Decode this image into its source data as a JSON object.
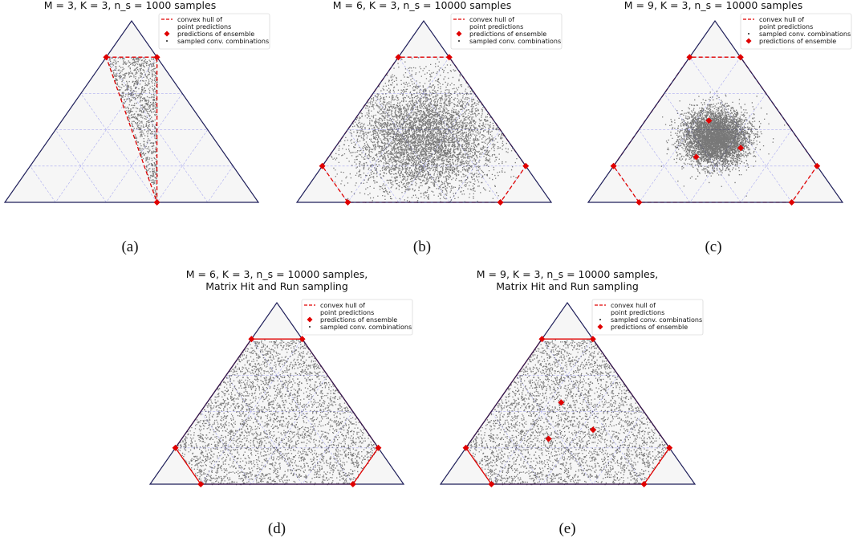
{
  "colors": {
    "triangle_edge": "#1f1f5a",
    "triangle_fill": "#f6f6f6",
    "grid": "#9999ee",
    "hull": "#e00000",
    "points": "#111111"
  },
  "chart_data": [
    {
      "type": "scatter",
      "caption": "(a)",
      "title_lines": [
        "M = 3, K = 3, n_s = 1000 samples"
      ],
      "hull_style": "dashed",
      "cloud": "uniform",
      "sample_count": 1000,
      "legend_order": [
        "hull",
        "ensemble",
        "samples"
      ],
      "legend_labels": {
        "hull": [
          "convex hull of",
          " point predictions"
        ],
        "ensemble": [
          "predictions of ensemble"
        ],
        "samples": [
          "sampled conv. combinations"
        ]
      },
      "ensemble_predictions": [
        [
          0.2,
          0.0,
          0.8
        ],
        [
          0.0,
          0.2,
          0.8
        ],
        [
          0.4,
          0.6,
          0.0
        ]
      ],
      "hull_vertices": [
        [
          0.2,
          0.0,
          0.8
        ],
        [
          0.0,
          0.2,
          0.8
        ],
        [
          0.4,
          0.6,
          0.0
        ]
      ]
    },
    {
      "type": "scatter",
      "caption": "(b)",
      "title_lines": [
        "M = 6, K = 3, n_s = 10000 samples"
      ],
      "hull_style": "dashed",
      "cloud": "concentrated",
      "sample_count": 10000,
      "legend_order": [
        "hull",
        "ensemble",
        "samples"
      ],
      "legend_labels": {
        "hull": [
          "convex hull of",
          " point predictions"
        ],
        "ensemble": [
          "predictions of ensemble"
        ],
        "samples": [
          "sampled conv. combinations"
        ]
      },
      "ensemble_predictions": [
        [
          0.8,
          0.2,
          0.0
        ],
        [
          0.8,
          0.0,
          0.2
        ],
        [
          0.2,
          0.0,
          0.8
        ],
        [
          0.0,
          0.2,
          0.8
        ],
        [
          0.0,
          0.8,
          0.2
        ],
        [
          0.2,
          0.8,
          0.0
        ]
      ],
      "hull_vertices": [
        [
          0.8,
          0.2,
          0.0
        ],
        [
          0.8,
          0.0,
          0.2
        ],
        [
          0.2,
          0.0,
          0.8
        ],
        [
          0.0,
          0.2,
          0.8
        ],
        [
          0.0,
          0.8,
          0.2
        ],
        [
          0.2,
          0.8,
          0.0
        ]
      ]
    },
    {
      "type": "scatter",
      "caption": "(c)",
      "title_lines": [
        "M = 9, K = 3, n_s = 10000 samples"
      ],
      "hull_style": "dashed",
      "cloud": "central",
      "sample_count": 10000,
      "legend_order": [
        "hull",
        "samples",
        "ensemble"
      ],
      "legend_labels": {
        "hull": [
          "convex hull of",
          " point predictions"
        ],
        "ensemble": [
          "predictions of ensemble"
        ],
        "samples": [
          "sampled conv. combinations"
        ]
      },
      "ensemble_predictions": [
        [
          0.8,
          0.2,
          0.0
        ],
        [
          0.8,
          0.0,
          0.2
        ],
        [
          0.2,
          0.0,
          0.8
        ],
        [
          0.0,
          0.2,
          0.8
        ],
        [
          0.0,
          0.8,
          0.2
        ],
        [
          0.2,
          0.8,
          0.0
        ],
        [
          0.45,
          0.3,
          0.25
        ],
        [
          0.3,
          0.25,
          0.45
        ],
        [
          0.25,
          0.45,
          0.3
        ]
      ],
      "hull_vertices": [
        [
          0.8,
          0.2,
          0.0
        ],
        [
          0.8,
          0.0,
          0.2
        ],
        [
          0.2,
          0.0,
          0.8
        ],
        [
          0.0,
          0.2,
          0.8
        ],
        [
          0.0,
          0.8,
          0.2
        ],
        [
          0.2,
          0.8,
          0.0
        ]
      ]
    },
    {
      "type": "scatter",
      "caption": "(d)",
      "title_lines": [
        "M = 6, K = 3, n_s = 10000 samples,",
        "Matrix Hit and Run sampling"
      ],
      "hull_style": "solid",
      "cloud": "uniform",
      "sample_count": 10000,
      "legend_order": [
        "hull",
        "ensemble",
        "samples"
      ],
      "legend_labels": {
        "hull": [
          "convex hull of",
          " point predictions"
        ],
        "ensemble": [
          "predictions of ensemble"
        ],
        "samples": [
          "sampled conv. combinations"
        ]
      },
      "ensemble_predictions": [
        [
          0.8,
          0.2,
          0.0
        ],
        [
          0.8,
          0.0,
          0.2
        ],
        [
          0.2,
          0.0,
          0.8
        ],
        [
          0.0,
          0.2,
          0.8
        ],
        [
          0.0,
          0.8,
          0.2
        ],
        [
          0.2,
          0.8,
          0.0
        ]
      ],
      "hull_vertices": [
        [
          0.8,
          0.2,
          0.0
        ],
        [
          0.8,
          0.0,
          0.2
        ],
        [
          0.2,
          0.0,
          0.8
        ],
        [
          0.0,
          0.2,
          0.8
        ],
        [
          0.0,
          0.8,
          0.2
        ],
        [
          0.2,
          0.8,
          0.0
        ]
      ]
    },
    {
      "type": "scatter",
      "caption": "(e)",
      "title_lines": [
        "M = 9, K = 3, n_s = 10000 samples,",
        "Matrix Hit and Run sampling"
      ],
      "hull_style": "solid",
      "cloud": "uniform",
      "sample_count": 10000,
      "legend_order": [
        "hull",
        "samples",
        "ensemble"
      ],
      "legend_labels": {
        "hull": [
          "convex hull of",
          " point predictions"
        ],
        "ensemble": [
          "predictions of ensemble"
        ],
        "samples": [
          "sampled conv. combinations"
        ]
      },
      "ensemble_predictions": [
        [
          0.8,
          0.2,
          0.0
        ],
        [
          0.8,
          0.0,
          0.2
        ],
        [
          0.2,
          0.0,
          0.8
        ],
        [
          0.0,
          0.2,
          0.8
        ],
        [
          0.0,
          0.8,
          0.2
        ],
        [
          0.2,
          0.8,
          0.0
        ],
        [
          0.45,
          0.3,
          0.25
        ],
        [
          0.3,
          0.25,
          0.45
        ],
        [
          0.25,
          0.45,
          0.3
        ]
      ],
      "hull_vertices": [
        [
          0.8,
          0.2,
          0.0
        ],
        [
          0.8,
          0.0,
          0.2
        ],
        [
          0.2,
          0.0,
          0.8
        ],
        [
          0.0,
          0.2,
          0.8
        ],
        [
          0.0,
          0.8,
          0.2
        ],
        [
          0.2,
          0.8,
          0.0
        ]
      ]
    }
  ]
}
